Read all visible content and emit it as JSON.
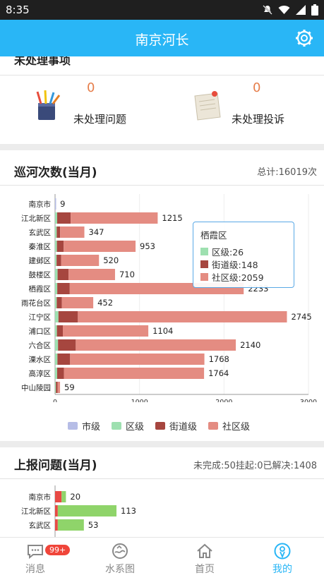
{
  "status_bar": {
    "time": "8:35"
  },
  "app_bar": {
    "title": "南京河长"
  },
  "pending": {
    "header": "未处理事项",
    "issues": {
      "count": "0",
      "label": "未处理问题"
    },
    "complaints": {
      "count": "0",
      "label": "未处理投诉"
    }
  },
  "patrol": {
    "title": "巡河次数(当月)",
    "total": "总计:16019次"
  },
  "report": {
    "title": "上报问题(当月)",
    "summary": "未完成:50挂起:0已解决:1408"
  },
  "tooltip": {
    "title": "栖霞区",
    "rows": [
      "区级:26",
      "街道级:148",
      "社区级:2059"
    ]
  },
  "legend": [
    "市级",
    "区级",
    "街道级",
    "社区级"
  ],
  "colors": {
    "city": "#b6bde6",
    "district": "#9ee0b0",
    "street": "#a6463f",
    "community": "#e48c82",
    "accent": "#29b6f6",
    "report_red": "#e84a45",
    "report_green": "#8fd46a"
  },
  "chart_data": [
    {
      "type": "bar",
      "orientation": "horizontal",
      "stacked": true,
      "categories": [
        "南京市",
        "江北新区",
        "玄武区",
        "秦淮区",
        "建邺区",
        "鼓楼区",
        "栖霞区",
        "雨花台区",
        "江宁区",
        "浦口区",
        "六合区",
        "溧水区",
        "高淳区",
        "中山陵园"
      ],
      "series": [
        {
          "name": "市级",
          "values": [
            9,
            0,
            0,
            0,
            0,
            0,
            0,
            0,
            0,
            0,
            0,
            0,
            0,
            0
          ]
        },
        {
          "name": "区级",
          "values": [
            0,
            25,
            20,
            22,
            18,
            30,
            26,
            20,
            40,
            22,
            35,
            28,
            25,
            10
          ]
        },
        {
          "name": "街道级",
          "values": [
            0,
            160,
            40,
            80,
            55,
            130,
            148,
            60,
            230,
            70,
            210,
            150,
            80,
            20
          ]
        },
        {
          "name": "社区级",
          "values": [
            0,
            1030,
            287,
            851,
            447,
            550,
            2059,
            372,
            2475,
            1012,
            1895,
            1590,
            1659,
            29
          ]
        }
      ],
      "totals": [
        "9",
        "1215",
        "347",
        "953",
        "520",
        "710",
        "2233",
        "452",
        "2745",
        "1104",
        "2140",
        "1768",
        "1764",
        "59"
      ],
      "x_ticks": [
        "0",
        "1000",
        "2000",
        "3000"
      ],
      "xlim": [
        0,
        3000
      ]
    },
    {
      "type": "bar",
      "orientation": "horizontal",
      "stacked": true,
      "categories": [
        "南京市",
        "江北新区",
        "玄武区"
      ],
      "series": [
        {
          "values": [
            12,
            5,
            5
          ]
        },
        {
          "values": [
            8,
            108,
            48
          ]
        }
      ],
      "totals": [
        "20",
        "113",
        "53"
      ]
    }
  ],
  "tabs": [
    {
      "label": "消息",
      "badge": "99+"
    },
    {
      "label": "水系图"
    },
    {
      "label": "首页"
    },
    {
      "label": "我的"
    }
  ]
}
